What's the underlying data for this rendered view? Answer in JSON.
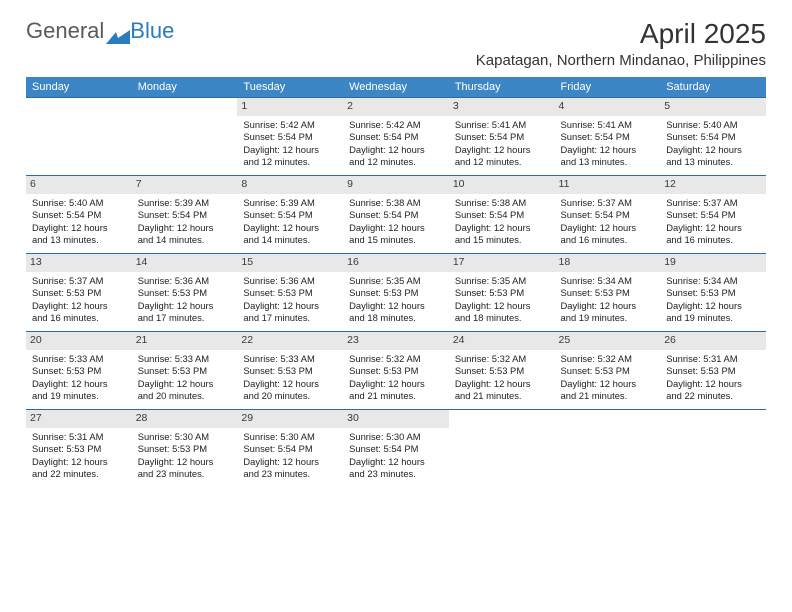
{
  "logo": {
    "text1": "General",
    "text2": "Blue"
  },
  "title": {
    "month": "April 2025",
    "location": "Kapatagan, Northern Mindanao, Philippines"
  },
  "headers": [
    "Sunday",
    "Monday",
    "Tuesday",
    "Wednesday",
    "Thursday",
    "Friday",
    "Saturday"
  ],
  "colors": {
    "header_bg": "#3d86c6",
    "row_border": "#2b6aa3",
    "daynum_bg": "#e8e8e8"
  },
  "first_weekday": 2,
  "days_in_month": 30,
  "days": {
    "1": {
      "sunrise": "5:42 AM",
      "sunset": "5:54 PM",
      "daylight": "12 hours and 12 minutes."
    },
    "2": {
      "sunrise": "5:42 AM",
      "sunset": "5:54 PM",
      "daylight": "12 hours and 12 minutes."
    },
    "3": {
      "sunrise": "5:41 AM",
      "sunset": "5:54 PM",
      "daylight": "12 hours and 12 minutes."
    },
    "4": {
      "sunrise": "5:41 AM",
      "sunset": "5:54 PM",
      "daylight": "12 hours and 13 minutes."
    },
    "5": {
      "sunrise": "5:40 AM",
      "sunset": "5:54 PM",
      "daylight": "12 hours and 13 minutes."
    },
    "6": {
      "sunrise": "5:40 AM",
      "sunset": "5:54 PM",
      "daylight": "12 hours and 13 minutes."
    },
    "7": {
      "sunrise": "5:39 AM",
      "sunset": "5:54 PM",
      "daylight": "12 hours and 14 minutes."
    },
    "8": {
      "sunrise": "5:39 AM",
      "sunset": "5:54 PM",
      "daylight": "12 hours and 14 minutes."
    },
    "9": {
      "sunrise": "5:38 AM",
      "sunset": "5:54 PM",
      "daylight": "12 hours and 15 minutes."
    },
    "10": {
      "sunrise": "5:38 AM",
      "sunset": "5:54 PM",
      "daylight": "12 hours and 15 minutes."
    },
    "11": {
      "sunrise": "5:37 AM",
      "sunset": "5:54 PM",
      "daylight": "12 hours and 16 minutes."
    },
    "12": {
      "sunrise": "5:37 AM",
      "sunset": "5:54 PM",
      "daylight": "12 hours and 16 minutes."
    },
    "13": {
      "sunrise": "5:37 AM",
      "sunset": "5:53 PM",
      "daylight": "12 hours and 16 minutes."
    },
    "14": {
      "sunrise": "5:36 AM",
      "sunset": "5:53 PM",
      "daylight": "12 hours and 17 minutes."
    },
    "15": {
      "sunrise": "5:36 AM",
      "sunset": "5:53 PM",
      "daylight": "12 hours and 17 minutes."
    },
    "16": {
      "sunrise": "5:35 AM",
      "sunset": "5:53 PM",
      "daylight": "12 hours and 18 minutes."
    },
    "17": {
      "sunrise": "5:35 AM",
      "sunset": "5:53 PM",
      "daylight": "12 hours and 18 minutes."
    },
    "18": {
      "sunrise": "5:34 AM",
      "sunset": "5:53 PM",
      "daylight": "12 hours and 19 minutes."
    },
    "19": {
      "sunrise": "5:34 AM",
      "sunset": "5:53 PM",
      "daylight": "12 hours and 19 minutes."
    },
    "20": {
      "sunrise": "5:33 AM",
      "sunset": "5:53 PM",
      "daylight": "12 hours and 19 minutes."
    },
    "21": {
      "sunrise": "5:33 AM",
      "sunset": "5:53 PM",
      "daylight": "12 hours and 20 minutes."
    },
    "22": {
      "sunrise": "5:33 AM",
      "sunset": "5:53 PM",
      "daylight": "12 hours and 20 minutes."
    },
    "23": {
      "sunrise": "5:32 AM",
      "sunset": "5:53 PM",
      "daylight": "12 hours and 21 minutes."
    },
    "24": {
      "sunrise": "5:32 AM",
      "sunset": "5:53 PM",
      "daylight": "12 hours and 21 minutes."
    },
    "25": {
      "sunrise": "5:32 AM",
      "sunset": "5:53 PM",
      "daylight": "12 hours and 21 minutes."
    },
    "26": {
      "sunrise": "5:31 AM",
      "sunset": "5:53 PM",
      "daylight": "12 hours and 22 minutes."
    },
    "27": {
      "sunrise": "5:31 AM",
      "sunset": "5:53 PM",
      "daylight": "12 hours and 22 minutes."
    },
    "28": {
      "sunrise": "5:30 AM",
      "sunset": "5:53 PM",
      "daylight": "12 hours and 23 minutes."
    },
    "29": {
      "sunrise": "5:30 AM",
      "sunset": "5:54 PM",
      "daylight": "12 hours and 23 minutes."
    },
    "30": {
      "sunrise": "5:30 AM",
      "sunset": "5:54 PM",
      "daylight": "12 hours and 23 minutes."
    }
  },
  "labels": {
    "sunrise": "Sunrise: ",
    "sunset": "Sunset: ",
    "daylight": "Daylight: "
  }
}
